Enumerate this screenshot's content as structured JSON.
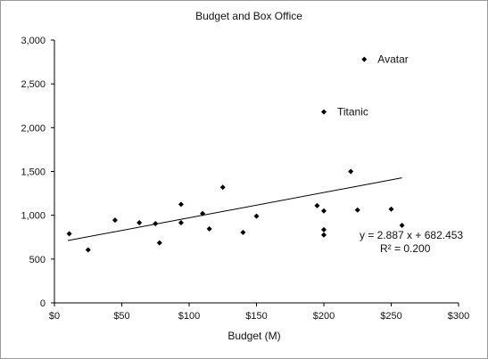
{
  "chart_data": {
    "type": "scatter",
    "title": "Budget and Box Office",
    "xlabel": "Budget (M)",
    "ylabel": "",
    "xlim": [
      0,
      300
    ],
    "ylim": [
      0,
      3000
    ],
    "x_ticks": [
      0,
      50,
      100,
      150,
      200,
      250,
      300
    ],
    "x_tick_labels": [
      "$0",
      "$50",
      "$100",
      "$150",
      "$200",
      "$250",
      "$300"
    ],
    "y_ticks": [
      0,
      500,
      1000,
      1500,
      2000,
      2500,
      3000
    ],
    "y_tick_labels": [
      "0",
      "500",
      "1,000",
      "1,500",
      "2,000",
      "2,500",
      "3,000"
    ],
    "grid": false,
    "legend": "none",
    "marker_color": "#000000",
    "points": [
      {
        "x": 11,
        "y": 790
      },
      {
        "x": 25,
        "y": 605
      },
      {
        "x": 45,
        "y": 945
      },
      {
        "x": 63,
        "y": 915
      },
      {
        "x": 75,
        "y": 905
      },
      {
        "x": 78,
        "y": 685
      },
      {
        "x": 94,
        "y": 1125
      },
      {
        "x": 94,
        "y": 915
      },
      {
        "x": 110,
        "y": 1020
      },
      {
        "x": 115,
        "y": 845
      },
      {
        "x": 125,
        "y": 1320
      },
      {
        "x": 140,
        "y": 805
      },
      {
        "x": 150,
        "y": 990
      },
      {
        "x": 195,
        "y": 1110
      },
      {
        "x": 200,
        "y": 2180,
        "label": "Titanic"
      },
      {
        "x": 200,
        "y": 1050
      },
      {
        "x": 200,
        "y": 835
      },
      {
        "x": 200,
        "y": 775
      },
      {
        "x": 220,
        "y": 1500
      },
      {
        "x": 225,
        "y": 1060
      },
      {
        "x": 230,
        "y": 2780,
        "label": "Avatar"
      },
      {
        "x": 250,
        "y": 1070
      },
      {
        "x": 258,
        "y": 885
      }
    ],
    "trendline": {
      "slope": 2.887,
      "intercept": 682.453,
      "x_range": [
        10,
        258
      ],
      "equation": "y = 2.887 x + 682.453",
      "r_squared": "R² = 0.200"
    }
  }
}
